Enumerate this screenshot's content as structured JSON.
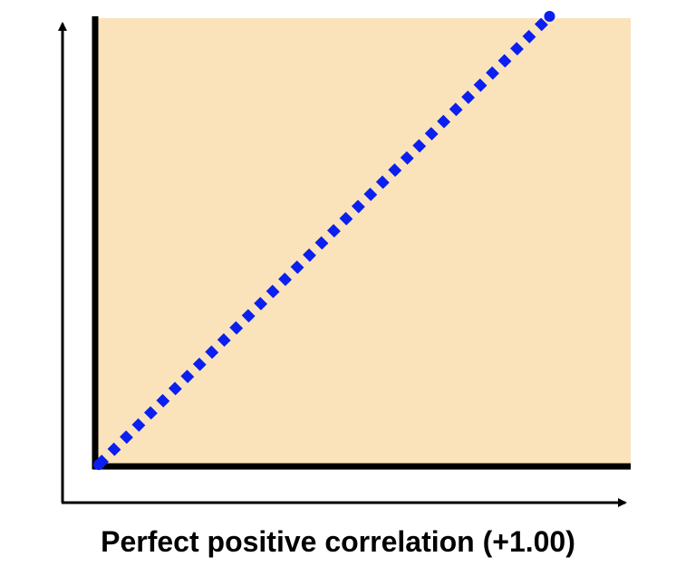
{
  "chart_data": {
    "type": "line",
    "title": "Perfect positive correlation (+1.00)",
    "xlabel": "",
    "ylabel": "",
    "x": [
      0,
      1
    ],
    "series": [
      {
        "values": [
          0,
          1
        ],
        "style": "dotted",
        "color": "#0a1ff0"
      }
    ],
    "xlim": [
      0,
      1.18
    ],
    "ylim": [
      0,
      1
    ],
    "grid": false,
    "legend": "none",
    "colors": {
      "plot_background": "#fae3bb",
      "axis": "#000000",
      "series": "#0a1ff0"
    }
  }
}
